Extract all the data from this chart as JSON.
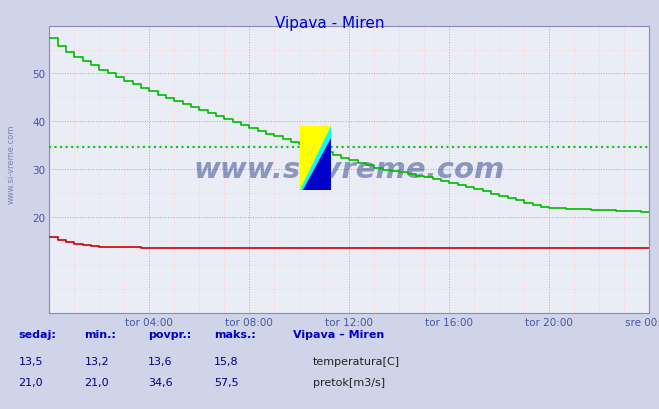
{
  "title": "Vipava - Miren",
  "title_color": "#0000cc",
  "bg_color": "#d0d4e8",
  "plot_bg_color": "#eaedf5",
  "grid_color_major": "#ff8888",
  "grid_color_minor": "#ffcccc",
  "grid_color_green": "#00cc00",
  "ylim": [
    0,
    60
  ],
  "yticks": [
    20,
    30,
    40,
    50
  ],
  "xlim": [
    0,
    288
  ],
  "xtick_labels": [
    "tor 04:00",
    "tor 08:00",
    "tor 12:00",
    "tor 16:00",
    "tor 20:00",
    "sre 00:00"
  ],
  "xtick_positions": [
    48,
    96,
    144,
    192,
    240,
    288
  ],
  "temp_color": "#cc0000",
  "flow_color": "#00bb00",
  "watermark": "www.si-vreme.com",
  "watermark_color": "#1a2e80",
  "watermark_alpha": 0.45,
  "table_label_color": "#0000cc",
  "table_value_color": "#000088",
  "sedaj_temp": "13,5",
  "min_temp": "13,2",
  "povpr_temp": "13,6",
  "maks_temp": "15,8",
  "sedaj_flow": "21,0",
  "min_flow": "21,0",
  "povpr_flow": "34,6",
  "maks_flow": "57,5",
  "spine_color": "#8888bb",
  "avg_line_value": 34.6,
  "avg_line_color": "#00cc00"
}
